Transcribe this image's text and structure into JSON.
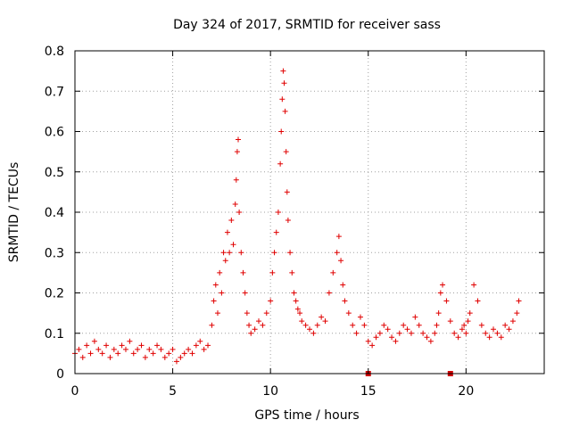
{
  "chart_data": {
    "type": "scatter",
    "title": "Day 324 of 2017, SRMTID for receiver sass",
    "xlabel": "GPS time / hours",
    "ylabel": "SRMTID / TECUs",
    "xlim": [
      0,
      24
    ],
    "ylim": [
      0,
      0.8
    ],
    "xticks": [
      0,
      5,
      10,
      15,
      20
    ],
    "yticks": [
      0,
      0.1,
      0.2,
      0.3,
      0.4,
      0.5,
      0.6,
      0.7,
      0.8
    ],
    "xtick_labels": [
      "0",
      "5",
      "10",
      "15",
      "20"
    ],
    "ytick_labels": [
      "0",
      "0.1",
      "0.2",
      "0.3",
      "0.4",
      "0.5",
      "0.6",
      "0.7",
      "0.8"
    ],
    "grid": true,
    "marker": "+",
    "color": "#e00000",
    "gap_markers_x": [
      15.0,
      19.2
    ],
    "series": [
      {
        "name": "SRMTID",
        "x": [
          0.0,
          0.2,
          0.4,
          0.6,
          0.8,
          1.0,
          1.2,
          1.4,
          1.6,
          1.8,
          2.0,
          2.2,
          2.4,
          2.6,
          2.8,
          3.0,
          3.2,
          3.4,
          3.6,
          3.8,
          4.0,
          4.2,
          4.4,
          4.6,
          4.8,
          5.0,
          5.2,
          5.4,
          5.6,
          5.8,
          6.0,
          6.2,
          6.4,
          6.6,
          6.8,
          7.0,
          7.1,
          7.2,
          7.3,
          7.4,
          7.5,
          7.6,
          7.7,
          7.8,
          7.9,
          8.0,
          8.1,
          8.2,
          8.25,
          8.3,
          8.35,
          8.4,
          8.5,
          8.6,
          8.7,
          8.8,
          8.9,
          9.0,
          9.2,
          9.4,
          9.6,
          9.8,
          10.0,
          10.1,
          10.2,
          10.3,
          10.4,
          10.5,
          10.55,
          10.6,
          10.65,
          10.7,
          10.75,
          10.8,
          10.85,
          10.9,
          11.0,
          11.1,
          11.2,
          11.3,
          11.4,
          11.5,
          11.6,
          11.8,
          12.0,
          12.2,
          12.4,
          12.6,
          12.8,
          13.0,
          13.2,
          13.4,
          13.5,
          13.6,
          13.7,
          13.8,
          14.0,
          14.2,
          14.4,
          14.6,
          14.8,
          15.0,
          15.2,
          15.4,
          15.6,
          15.8,
          16.0,
          16.2,
          16.4,
          16.6,
          16.8,
          17.0,
          17.2,
          17.4,
          17.6,
          17.8,
          18.0,
          18.2,
          18.4,
          18.5,
          18.6,
          18.7,
          18.8,
          19.0,
          19.2,
          19.4,
          19.6,
          19.8,
          19.9,
          20.0,
          20.1,
          20.2,
          20.4,
          20.6,
          20.8,
          21.0,
          21.2,
          21.4,
          21.6,
          21.8,
          22.0,
          22.2,
          22.4,
          22.6,
          22.7
        ],
        "y": [
          0.05,
          0.06,
          0.04,
          0.07,
          0.05,
          0.08,
          0.06,
          0.05,
          0.07,
          0.04,
          0.06,
          0.05,
          0.07,
          0.06,
          0.08,
          0.05,
          0.06,
          0.07,
          0.04,
          0.06,
          0.05,
          0.07,
          0.06,
          0.04,
          0.05,
          0.06,
          0.03,
          0.04,
          0.05,
          0.06,
          0.05,
          0.07,
          0.08,
          0.06,
          0.07,
          0.12,
          0.18,
          0.22,
          0.15,
          0.25,
          0.2,
          0.3,
          0.28,
          0.35,
          0.3,
          0.38,
          0.32,
          0.42,
          0.48,
          0.55,
          0.58,
          0.4,
          0.3,
          0.25,
          0.2,
          0.15,
          0.12,
          0.1,
          0.11,
          0.13,
          0.12,
          0.15,
          0.18,
          0.25,
          0.3,
          0.35,
          0.4,
          0.52,
          0.6,
          0.68,
          0.75,
          0.72,
          0.65,
          0.55,
          0.45,
          0.38,
          0.3,
          0.25,
          0.2,
          0.18,
          0.16,
          0.15,
          0.13,
          0.12,
          0.11,
          0.1,
          0.12,
          0.14,
          0.13,
          0.2,
          0.25,
          0.3,
          0.34,
          0.28,
          0.22,
          0.18,
          0.15,
          0.12,
          0.1,
          0.14,
          0.12,
          0.08,
          0.07,
          0.09,
          0.1,
          0.12,
          0.11,
          0.09,
          0.08,
          0.1,
          0.12,
          0.11,
          0.1,
          0.14,
          0.12,
          0.1,
          0.09,
          0.08,
          0.1,
          0.12,
          0.15,
          0.2,
          0.22,
          0.18,
          0.13,
          0.1,
          0.09,
          0.11,
          0.12,
          0.1,
          0.13,
          0.15,
          0.22,
          0.18,
          0.12,
          0.1,
          0.09,
          0.11,
          0.1,
          0.09,
          0.12,
          0.11,
          0.13,
          0.15,
          0.18
        ]
      }
    ]
  }
}
